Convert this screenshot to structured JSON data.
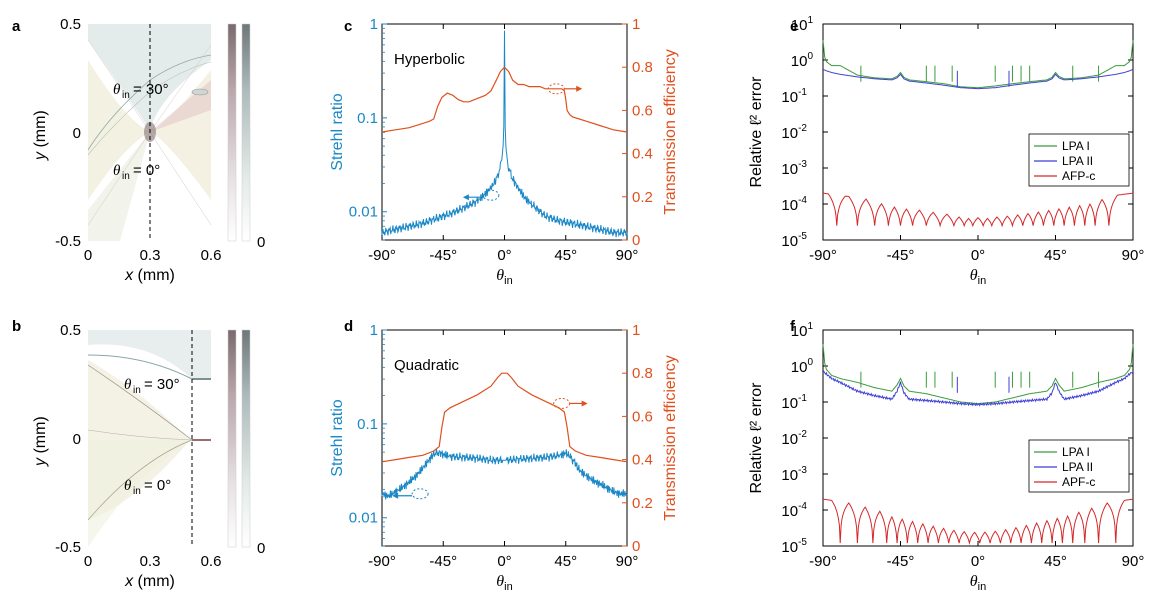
{
  "colors": {
    "blue": "#1a87c6",
    "orange": "#e0501e",
    "lpa1": "#3a9b3a",
    "lpa2": "#3f3fd6",
    "afp": "#d4282a",
    "axis": "#000000"
  },
  "panels": {
    "a": {
      "label": "a",
      "ylabel_var": "y",
      "ylabel_unit": " (mm)",
      "xlabel_var": "x",
      "xlabel_unit": " (mm)",
      "annot_top": "θ",
      "annot_top_sub": "in",
      "annot_top_val": "= 30°",
      "annot_bot": "θ",
      "annot_bot_sub": "in",
      "annot_bot_val": "= 0°",
      "xticks": [
        "0",
        "0.3",
        "0.6"
      ],
      "yticks": [
        "0.5",
        "0",
        "-0.5"
      ],
      "colorbar_min": "0"
    },
    "b": {
      "label": "b",
      "ylabel_var": "y",
      "ylabel_unit": " (mm)",
      "xlabel_var": "x",
      "xlabel_unit": " (mm)",
      "annot_top": "θ",
      "annot_top_sub": "in",
      "annot_top_val": "= 30°",
      "annot_bot": "θ",
      "annot_bot_sub": "in",
      "annot_bot_val": "= 0°",
      "xticks": [
        "0",
        "0.3",
        "0.6"
      ],
      "yticks": [
        "0.5",
        "0",
        "-0.5"
      ],
      "colorbar_min": "0"
    },
    "c": {
      "label": "c",
      "title": "Hyperbolic"
    },
    "d": {
      "label": "d",
      "title": "Quadratic"
    },
    "e": {
      "label": "e"
    },
    "f": {
      "label": "f"
    }
  },
  "chart_data": [
    {
      "panel": "c",
      "type": "line",
      "xlabel": "θin",
      "xticks": [
        "-90°",
        "-45°",
        "0°",
        "45°",
        "90°"
      ],
      "xlim": [
        -90,
        90
      ],
      "ylabel_left": "Strehl ratio",
      "ylim_left": [
        0.005,
        1
      ],
      "yscale_left": "log",
      "yticks_left": [
        "0.01",
        "0.1",
        "1"
      ],
      "ylabel_right": "Transmission efficiency",
      "ylim_right": [
        0,
        1
      ],
      "yticks_right": [
        "0",
        "0.2",
        "0.4",
        "0.6",
        "0.8",
        "1"
      ],
      "series": [
        {
          "axis": "left",
          "color": "blue",
          "x": [
            -90,
            -80,
            -70,
            -60,
            -50,
            -40,
            -30,
            -20,
            -15,
            -10,
            -7,
            -5,
            -3,
            -2,
            -1,
            -0.5,
            0,
            0.5,
            1,
            2,
            3,
            5,
            7,
            10,
            15,
            20,
            30,
            40,
            50,
            60,
            70,
            80,
            90
          ],
          "y": [
            0.006,
            0.0065,
            0.007,
            0.0075,
            0.0085,
            0.0095,
            0.011,
            0.013,
            0.015,
            0.018,
            0.021,
            0.024,
            0.03,
            0.036,
            0.05,
            0.08,
            0.85,
            0.08,
            0.05,
            0.036,
            0.03,
            0.024,
            0.021,
            0.018,
            0.014,
            0.012,
            0.009,
            0.008,
            0.0075,
            0.007,
            0.0065,
            0.006,
            0.006
          ]
        },
        {
          "axis": "right",
          "color": "orange",
          "x": [
            -90,
            -80,
            -70,
            -60,
            -55,
            -52,
            -49,
            -46,
            -42,
            -38,
            -34,
            -30,
            -26,
            -22,
            -18,
            -14,
            -10,
            -6,
            -3,
            0,
            3,
            6,
            10,
            14,
            18,
            22,
            26,
            30,
            34,
            38,
            42,
            44,
            45,
            46,
            48,
            50,
            55,
            60,
            70,
            80,
            90
          ],
          "y": [
            0.5,
            0.51,
            0.52,
            0.54,
            0.55,
            0.56,
            0.62,
            0.66,
            0.68,
            0.67,
            0.65,
            0.64,
            0.64,
            0.65,
            0.66,
            0.67,
            0.69,
            0.74,
            0.78,
            0.8,
            0.78,
            0.74,
            0.72,
            0.72,
            0.71,
            0.71,
            0.71,
            0.7,
            0.7,
            0.7,
            0.7,
            0.69,
            0.65,
            0.6,
            0.58,
            0.57,
            0.56,
            0.55,
            0.53,
            0.51,
            0.5
          ]
        }
      ]
    },
    {
      "panel": "d",
      "type": "line",
      "xlabel": "θin",
      "xticks": [
        "-90°",
        "-45°",
        "0°",
        "45°",
        "90°"
      ],
      "xlim": [
        -90,
        90
      ],
      "ylabel_left": "Strehl ratio",
      "ylim_left": [
        0.005,
        1
      ],
      "yscale_left": "log",
      "yticks_left": [
        "0.01",
        "0.1",
        "1"
      ],
      "ylabel_right": "Transmission efficiency",
      "ylim_right": [
        0,
        1
      ],
      "yticks_right": [
        "0",
        "0.2",
        "0.4",
        "0.6",
        "0.8",
        "1"
      ],
      "series": [
        {
          "axis": "left",
          "color": "blue",
          "x": [
            -90,
            -85,
            -80,
            -75,
            -70,
            -65,
            -60,
            -55,
            -52,
            -48,
            -45,
            -40,
            -30,
            -20,
            -10,
            0,
            10,
            20,
            30,
            40,
            45,
            48,
            52,
            55,
            60,
            65,
            70,
            75,
            80,
            85,
            90
          ],
          "y": [
            0.018,
            0.017,
            0.019,
            0.021,
            0.024,
            0.028,
            0.034,
            0.042,
            0.048,
            0.05,
            0.047,
            0.045,
            0.044,
            0.043,
            0.041,
            0.041,
            0.042,
            0.043,
            0.044,
            0.046,
            0.049,
            0.045,
            0.038,
            0.032,
            0.028,
            0.025,
            0.023,
            0.021,
            0.019,
            0.018,
            0.018
          ]
        },
        {
          "axis": "right",
          "color": "orange",
          "x": [
            -90,
            -80,
            -70,
            -60,
            -52,
            -48,
            -46,
            -44,
            -40,
            -30,
            -20,
            -10,
            -5,
            -2,
            0,
            2,
            5,
            10,
            20,
            30,
            40,
            44,
            46,
            48,
            52,
            60,
            70,
            80,
            90
          ],
          "y": [
            0.39,
            0.4,
            0.41,
            0.42,
            0.44,
            0.46,
            0.55,
            0.62,
            0.64,
            0.67,
            0.7,
            0.74,
            0.78,
            0.8,
            0.8,
            0.8,
            0.78,
            0.74,
            0.7,
            0.67,
            0.64,
            0.62,
            0.55,
            0.46,
            0.44,
            0.42,
            0.41,
            0.4,
            0.39
          ]
        }
      ]
    },
    {
      "panel": "e",
      "type": "line",
      "xlabel": "θin",
      "xticks": [
        "-90°",
        "-45°",
        "0°",
        "45°",
        "90°"
      ],
      "xlim": [
        -90,
        90
      ],
      "ylabel": "Relative ℓ² error",
      "yscale": "log",
      "ylim": [
        1e-05,
        10
      ],
      "yticks": [
        "10-5",
        "10-4",
        "10-3",
        "10-2",
        "10-1",
        "100",
        "101"
      ],
      "legend": [
        "LPA I",
        "LPA II",
        "AFP-c"
      ],
      "legend_position": "center-right",
      "series": [
        {
          "name": "LPA I",
          "color": "lpa1",
          "x": [
            -90,
            -89,
            -88,
            -85,
            -80,
            -70,
            -60,
            -50,
            -47,
            -45,
            -43,
            -40,
            -30,
            -20,
            -10,
            0,
            10,
            20,
            30,
            40,
            43,
            45,
            47,
            50,
            60,
            70,
            80,
            85,
            88,
            89,
            90
          ],
          "y": [
            3.5,
            1.2,
            0.9,
            0.7,
            0.7,
            0.38,
            0.32,
            0.3,
            0.35,
            0.45,
            0.33,
            0.28,
            0.25,
            0.22,
            0.18,
            0.17,
            0.19,
            0.22,
            0.25,
            0.28,
            0.33,
            0.45,
            0.35,
            0.3,
            0.32,
            0.38,
            0.7,
            0.7,
            0.9,
            1.2,
            3.5
          ]
        },
        {
          "name": "LPA II",
          "color": "lpa2",
          "x": [
            -90,
            -88,
            -85,
            -80,
            -70,
            -60,
            -50,
            -47,
            -45,
            -43,
            -40,
            -30,
            -20,
            -10,
            0,
            10,
            20,
            30,
            40,
            43,
            45,
            47,
            50,
            60,
            70,
            80,
            85,
            88,
            90
          ],
          "y": [
            0.55,
            0.5,
            0.45,
            0.4,
            0.34,
            0.3,
            0.28,
            0.32,
            0.4,
            0.3,
            0.26,
            0.23,
            0.2,
            0.17,
            0.16,
            0.17,
            0.2,
            0.23,
            0.26,
            0.3,
            0.4,
            0.32,
            0.28,
            0.3,
            0.34,
            0.4,
            0.45,
            0.5,
            0.55
          ]
        },
        {
          "name": "AFP-c",
          "color": "afp",
          "kind": "afp_e"
        }
      ]
    },
    {
      "panel": "f",
      "type": "line",
      "xlabel": "θin",
      "xticks": [
        "-90°",
        "-45°",
        "0°",
        "45°",
        "90°"
      ],
      "xlim": [
        -90,
        90
      ],
      "ylabel": "Relative ℓ² error",
      "yscale": "log",
      "ylim": [
        1e-05,
        10
      ],
      "yticks": [
        "10-5",
        "10-4",
        "10-3",
        "10-2",
        "10-1",
        "100",
        "101"
      ],
      "legend": [
        "LPA I",
        "LPA II",
        "APF-c"
      ],
      "legend_position": "center-right",
      "series": [
        {
          "name": "LPA I",
          "color": "lpa1",
          "x": [
            -90,
            -89,
            -88,
            -85,
            -80,
            -70,
            -60,
            -50,
            -47,
            -45,
            -43,
            -40,
            -30,
            -20,
            -10,
            0,
            10,
            20,
            30,
            40,
            43,
            45,
            47,
            50,
            60,
            70,
            80,
            85,
            88,
            89,
            90
          ],
          "y": [
            4,
            1.2,
            0.8,
            0.55,
            0.45,
            0.35,
            0.25,
            0.2,
            0.3,
            0.45,
            0.28,
            0.2,
            0.17,
            0.13,
            0.1,
            0.09,
            0.1,
            0.13,
            0.17,
            0.2,
            0.28,
            0.45,
            0.3,
            0.2,
            0.25,
            0.35,
            0.45,
            0.55,
            0.8,
            1.2,
            4
          ]
        },
        {
          "name": "LPA II",
          "color": "lpa2",
          "x": [
            -90,
            -88,
            -85,
            -80,
            -70,
            -60,
            -50,
            -47,
            -45,
            -43,
            -40,
            -30,
            -20,
            -10,
            0,
            10,
            20,
            30,
            40,
            43,
            45,
            47,
            50,
            60,
            70,
            80,
            85,
            88,
            90
          ],
          "y": [
            0.7,
            0.6,
            0.45,
            0.35,
            0.2,
            0.15,
            0.12,
            0.2,
            0.35,
            0.18,
            0.12,
            0.11,
            0.1,
            0.09,
            0.085,
            0.09,
            0.1,
            0.11,
            0.12,
            0.18,
            0.35,
            0.2,
            0.12,
            0.15,
            0.2,
            0.35,
            0.45,
            0.6,
            0.7
          ]
        },
        {
          "name": "APF-c",
          "color": "afp",
          "kind": "afp_f"
        }
      ]
    }
  ]
}
